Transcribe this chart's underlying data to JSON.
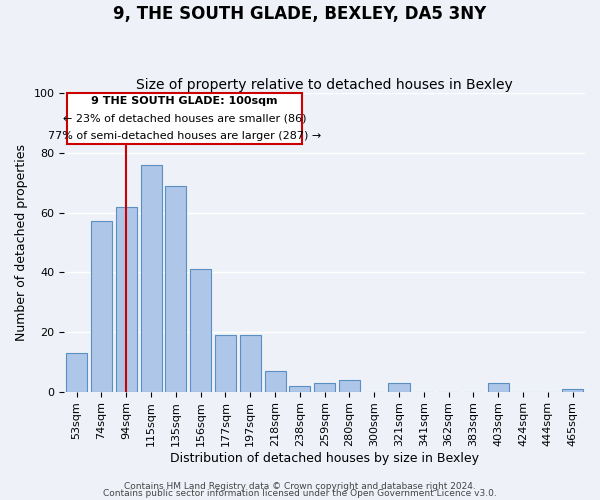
{
  "title": "9, THE SOUTH GLADE, BEXLEY, DA5 3NY",
  "subtitle": "Size of property relative to detached houses in Bexley",
  "xlabel": "Distribution of detached houses by size in Bexley",
  "ylabel": "Number of detached properties",
  "bar_labels": [
    "53sqm",
    "74sqm",
    "94sqm",
    "115sqm",
    "135sqm",
    "156sqm",
    "177sqm",
    "197sqm",
    "218sqm",
    "238sqm",
    "259sqm",
    "280sqm",
    "300sqm",
    "321sqm",
    "341sqm",
    "362sqm",
    "383sqm",
    "403sqm",
    "424sqm",
    "444sqm",
    "465sqm"
  ],
  "bar_values": [
    13,
    57,
    62,
    76,
    69,
    41,
    19,
    19,
    7,
    2,
    3,
    4,
    0,
    3,
    0,
    0,
    0,
    3,
    0,
    0,
    1
  ],
  "bar_color": "#aec6e8",
  "bar_edge_color": "#5a8fc2",
  "ylim": [
    0,
    100
  ],
  "vline_x": 2,
  "vline_color": "#cc0000",
  "annotation_lines": [
    "9 THE SOUTH GLADE: 100sqm",
    "← 23% of detached houses are smaller (86)",
    "77% of semi-detached houses are larger (287) →"
  ],
  "footer_line1": "Contains HM Land Registry data © Crown copyright and database right 2024.",
  "footer_line2": "Contains public sector information licensed under the Open Government Licence v3.0.",
  "background_color": "#eef2f8",
  "plot_bg_color": "#eef2f8",
  "grid_color": "#ffffff",
  "title_fontsize": 12,
  "subtitle_fontsize": 10,
  "tick_fontsize": 8,
  "ylabel_fontsize": 9,
  "xlabel_fontsize": 9,
  "footer_fontsize": 6.5
}
